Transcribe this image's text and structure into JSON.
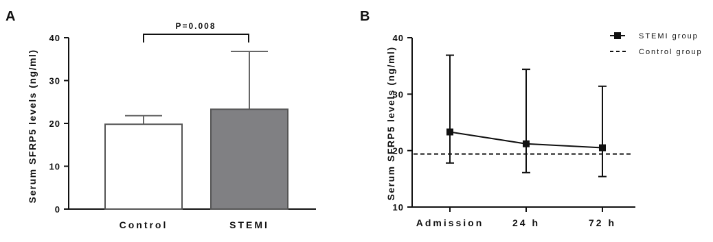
{
  "chart_data": [
    {
      "panel": "A",
      "type": "bar",
      "categories": [
        "Control",
        "STEMI"
      ],
      "values": [
        19.8,
        23.3
      ],
      "error_upper": [
        21.8,
        36.8
      ],
      "bar_colors": [
        "#ffffff",
        "#808083"
      ],
      "ylabel": "Serum SFRP5 levels (ng/ml)",
      "ylim": [
        0,
        40
      ],
      "yticks": [
        "0",
        "10",
        "20",
        "30",
        "40"
      ],
      "annotation": "P=0.008"
    },
    {
      "panel": "B",
      "type": "line",
      "categories": [
        "Admission",
        "24 h",
        "72 h"
      ],
      "series": [
        {
          "name": "STEMI group",
          "values": [
            23.3,
            21.2,
            20.5
          ],
          "err_low": [
            17.8,
            16.1,
            15.4
          ],
          "err_high": [
            36.9,
            34.4,
            31.4
          ]
        }
      ],
      "reference_line": {
        "name": "Control group",
        "value": 19.4
      },
      "ylabel": "Serum SFRP5 levels (ng/ml)",
      "ylim": [
        10,
        40
      ],
      "yticks": [
        "10",
        "20",
        "30",
        "40"
      ],
      "legend_position": "top-right"
    }
  ]
}
